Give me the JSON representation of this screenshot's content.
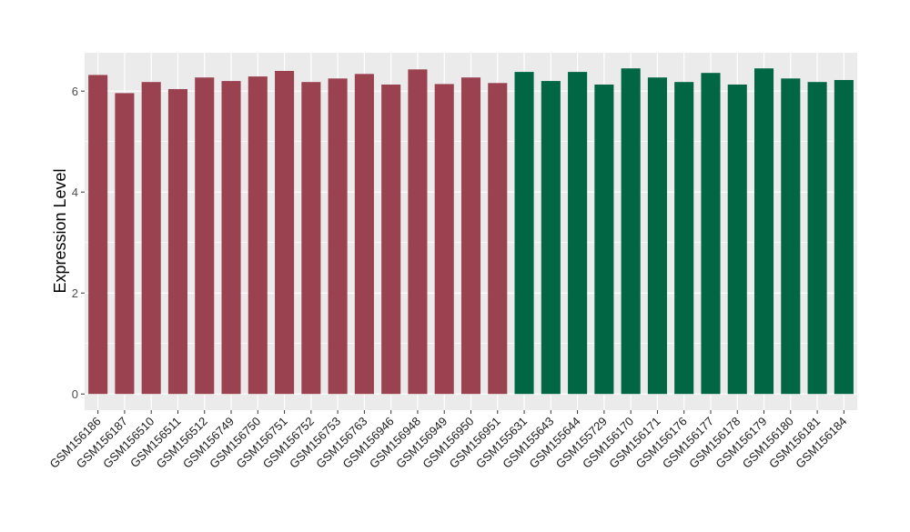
{
  "chart_data": {
    "type": "bar",
    "title": "",
    "xlabel": "",
    "ylabel": "Expression Level",
    "ylim": [
      -0.32,
      6.76
    ],
    "yticks": [
      0,
      2,
      4,
      6
    ],
    "grid": true,
    "legend": "none",
    "categories": [
      "GSM156186",
      "GSM156187",
      "GSM156510",
      "GSM156511",
      "GSM156512",
      "GSM156749",
      "GSM156750",
      "GSM156751",
      "GSM156752",
      "GSM156753",
      "GSM156763",
      "GSM156946",
      "GSM156948",
      "GSM156949",
      "GSM156950",
      "GSM156951",
      "GSM155631",
      "GSM155643",
      "GSM155644",
      "GSM155729",
      "GSM156170",
      "GSM156171",
      "GSM156176",
      "GSM156177",
      "GSM156178",
      "GSM156179",
      "GSM156180",
      "GSM156181",
      "GSM156184"
    ],
    "values": [
      6.32,
      5.96,
      6.18,
      6.04,
      6.27,
      6.2,
      6.29,
      6.4,
      6.18,
      6.25,
      6.34,
      6.13,
      6.43,
      6.14,
      6.27,
      6.16,
      6.38,
      6.2,
      6.38,
      6.13,
      6.45,
      6.27,
      6.18,
      6.36,
      6.13,
      6.45,
      6.25,
      6.18,
      6.22
    ],
    "groups": [
      0,
      0,
      0,
      0,
      0,
      0,
      0,
      0,
      0,
      0,
      0,
      0,
      0,
      0,
      0,
      0,
      1,
      1,
      1,
      1,
      1,
      1,
      1,
      1,
      1,
      1,
      1,
      1,
      1
    ],
    "group_colors": [
      "#9b4251",
      "#006644"
    ]
  }
}
